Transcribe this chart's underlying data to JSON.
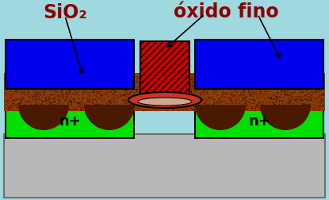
{
  "bg_color": "#a0d8df",
  "substrate_color": "#b8b8b8",
  "substrate_border": "#707070",
  "green_color": "#00e000",
  "brown_base": "#8B3A08",
  "brown_dot": "#1a0800",
  "brown_dark": "#4a1a00",
  "blue_color": "#0000ee",
  "red_color": "#cc0000",
  "black": "#000000",
  "label_color": "#8b0000",
  "oxide_face": "#cc3322",
  "oxide_inner": "#c8b8a0",
  "title_sio2": "SiO₂",
  "title_oxide": "óxido fino",
  "nplus": "n+",
  "fig_width": 4.15,
  "fig_height": 2.52,
  "dpi": 100
}
